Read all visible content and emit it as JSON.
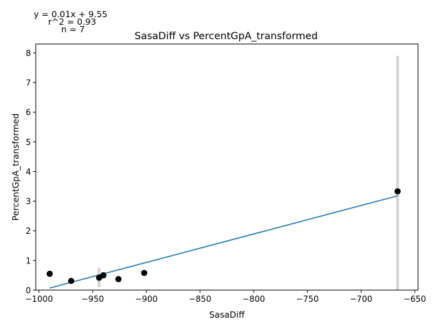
{
  "chart_data": {
    "type": "scatter",
    "title": "SasaDiff vs PercentGpA_transformed",
    "xlabel": "SasaDiff",
    "ylabel": "PercentGpA_transformed",
    "xlim": [
      -1003,
      -647
    ],
    "ylim": [
      0,
      8.3
    ],
    "x_ticks": [
      -1000,
      -950,
      -900,
      -850,
      -800,
      -750,
      -700,
      -650
    ],
    "y_ticks": [
      0,
      1,
      2,
      3,
      4,
      5,
      6,
      7,
      8
    ],
    "x_tick_labels": [
      "−1000",
      "−950",
      "−900",
      "−850",
      "−800",
      "−750",
      "−700",
      "−650"
    ],
    "y_tick_labels": [
      "0",
      "1",
      "2",
      "3",
      "4",
      "5",
      "6",
      "7",
      "8"
    ],
    "grid": false,
    "points": [
      {
        "x": -990,
        "y": 0.55
      },
      {
        "x": -970,
        "y": 0.31
      },
      {
        "x": -944,
        "y": 0.42
      },
      {
        "x": -940,
        "y": 0.5
      },
      {
        "x": -926,
        "y": 0.37
      },
      {
        "x": -902,
        "y": 0.58
      },
      {
        "x": -666,
        "y": 3.33
      }
    ],
    "error_bars": [
      {
        "x": -944,
        "low": 0.1,
        "high": 0.75
      },
      {
        "x": -666,
        "low": 0.0,
        "high": 7.9
      }
    ],
    "fit_line": {
      "x": [
        -990,
        -666
      ],
      "y": [
        0.07,
        3.18
      ]
    },
    "annotations": {
      "equation": "y = 0.01x + 9.55",
      "r2": "r^2 = 0.93",
      "n": "n = 7"
    },
    "colors": {
      "points": "#000000",
      "fit_line": "#1f77b4",
      "error_bars": "#d3d3d3"
    }
  }
}
